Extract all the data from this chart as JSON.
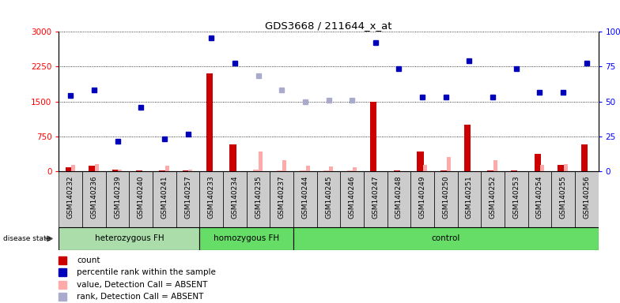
{
  "title": "GDS3668 / 211644_x_at",
  "samples": [
    "GSM140232",
    "GSM140236",
    "GSM140239",
    "GSM140240",
    "GSM140241",
    "GSM140257",
    "GSM140233",
    "GSM140234",
    "GSM140235",
    "GSM140237",
    "GSM140244",
    "GSM140245",
    "GSM140246",
    "GSM140247",
    "GSM140248",
    "GSM140249",
    "GSM140250",
    "GSM140251",
    "GSM140252",
    "GSM140253",
    "GSM140254",
    "GSM140255",
    "GSM140256"
  ],
  "groups": [
    {
      "label": "heterozygous FH",
      "start": 0,
      "end": 6
    },
    {
      "label": "homozygous FH",
      "start": 6,
      "end": 10
    },
    {
      "label": "control",
      "start": 10,
      "end": 23
    }
  ],
  "count_values": [
    80,
    110,
    30,
    20,
    20,
    20,
    2100,
    580,
    30,
    20,
    20,
    20,
    20,
    1500,
    20,
    430,
    20,
    1000,
    20,
    20,
    370,
    130,
    580
  ],
  "percentile_values": [
    1630,
    1750,
    650,
    1380,
    700,
    800,
    2870,
    2330,
    2060,
    1750,
    1490,
    1520,
    1520,
    2770,
    2200,
    1600,
    1600,
    2380,
    1600,
    2200,
    1700,
    1700,
    2320
  ],
  "absent_value": [
    130,
    150,
    30,
    0,
    110,
    30,
    0,
    0,
    430,
    240,
    110,
    100,
    80,
    0,
    0,
    130,
    300,
    0,
    230,
    0,
    130,
    150,
    0
  ],
  "absent_percentile_flag": [
    false,
    false,
    false,
    false,
    false,
    false,
    false,
    false,
    true,
    true,
    true,
    true,
    true,
    false,
    false,
    false,
    false,
    false,
    false,
    false,
    false,
    false,
    false
  ],
  "ylim_left": [
    0,
    3000
  ],
  "ylim_right": [
    0,
    100
  ],
  "yticks_left": [
    0,
    750,
    1500,
    2250,
    3000
  ],
  "yticks_right": [
    0,
    25,
    50,
    75,
    100
  ],
  "bar_color_present": "#cc0000",
  "bar_color_absent_val": "#ffaaaa",
  "dot_color_present": "#0000bb",
  "dot_color_absent": "#aaaacc",
  "group_colors": [
    "#aaddaa",
    "#66dd66",
    "#55cc55"
  ],
  "cell_bg": "#cccccc",
  "plot_bg": "#ffffff",
  "legend_items": [
    {
      "label": "count",
      "color": "#cc0000"
    },
    {
      "label": "percentile rank within the sample",
      "color": "#0000bb"
    },
    {
      "label": "value, Detection Call = ABSENT",
      "color": "#ffaaaa"
    },
    {
      "label": "rank, Detection Call = ABSENT",
      "color": "#aaaacc"
    }
  ]
}
